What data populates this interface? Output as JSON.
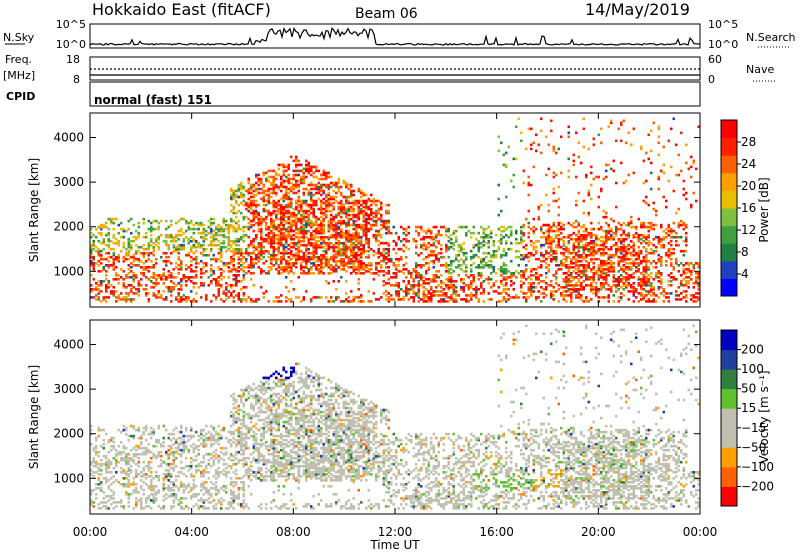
{
  "header": {
    "site": "Hokkaido East (fitACF)",
    "beam": "Beam 06",
    "date": "14/May/2019"
  },
  "noise_panel": {
    "left_label": "N.Sky",
    "right_label": "N.Search",
    "left_ticks": [
      "10^5",
      "10^0"
    ],
    "right_ticks": [
      "10^5",
      "10^0"
    ]
  },
  "freq_panel": {
    "left_label": "Freq.",
    "left_units": "[MHz]",
    "right_label": "Nave",
    "left_ticks": [
      "18",
      "8"
    ],
    "right_ticks": [
      "60",
      "0"
    ]
  },
  "cpid_panel": {
    "label": "CPID",
    "mode_text": "normal (fast) 151"
  },
  "colors": {
    "power": [
      "#0000ff",
      "#2040c0",
      "#208040",
      "#40a040",
      "#80c040",
      "#e8c000",
      "#ffa000",
      "#ff6000",
      "#ff2000",
      "#ff0000"
    ],
    "velocity": [
      "#ff0000",
      "#ff6000",
      "#ffa000",
      "#c0c0b0",
      "#c0c0b0",
      "#60c030",
      "#308040",
      "#2040a0",
      "#0000c0"
    ]
  },
  "chart_data": [
    {
      "type": "heatmap",
      "name": "power",
      "ylabel": "Slant Range [km]",
      "xlabel": "",
      "y_ticks": [
        "1000",
        "2000",
        "3000",
        "4000"
      ],
      "y_tick_values": [
        1000,
        2000,
        3000,
        4000
      ],
      "ylim": [
        200,
        4550
      ],
      "xlim": [
        0,
        24
      ],
      "colorbar": {
        "label": "Power [dB]",
        "ticks": [
          "4",
          "8",
          "12",
          "16",
          "20",
          "24",
          "28"
        ],
        "range": [
          0,
          32
        ]
      }
    },
    {
      "type": "heatmap",
      "name": "velocity",
      "ylabel": "Slant Range [km]",
      "xlabel": "Time UT",
      "y_ticks": [
        "1000",
        "2000",
        "3000",
        "4000"
      ],
      "y_tick_values": [
        1000,
        2000,
        3000,
        4000
      ],
      "ylim": [
        200,
        4550
      ],
      "xlim": [
        0,
        24
      ],
      "x_ticks": [
        "00:00",
        "04:00",
        "08:00",
        "12:00",
        "16:00",
        "20:00",
        "00:00"
      ],
      "x_tick_values": [
        0,
        4,
        8,
        12,
        16,
        20,
        24
      ],
      "colorbar": {
        "label": "Velocity [m s⁻¹]",
        "ticks": [
          "200",
          "100",
          "50",
          "15",
          "−15",
          "−50",
          "−100",
          "−200"
        ]
      }
    }
  ]
}
